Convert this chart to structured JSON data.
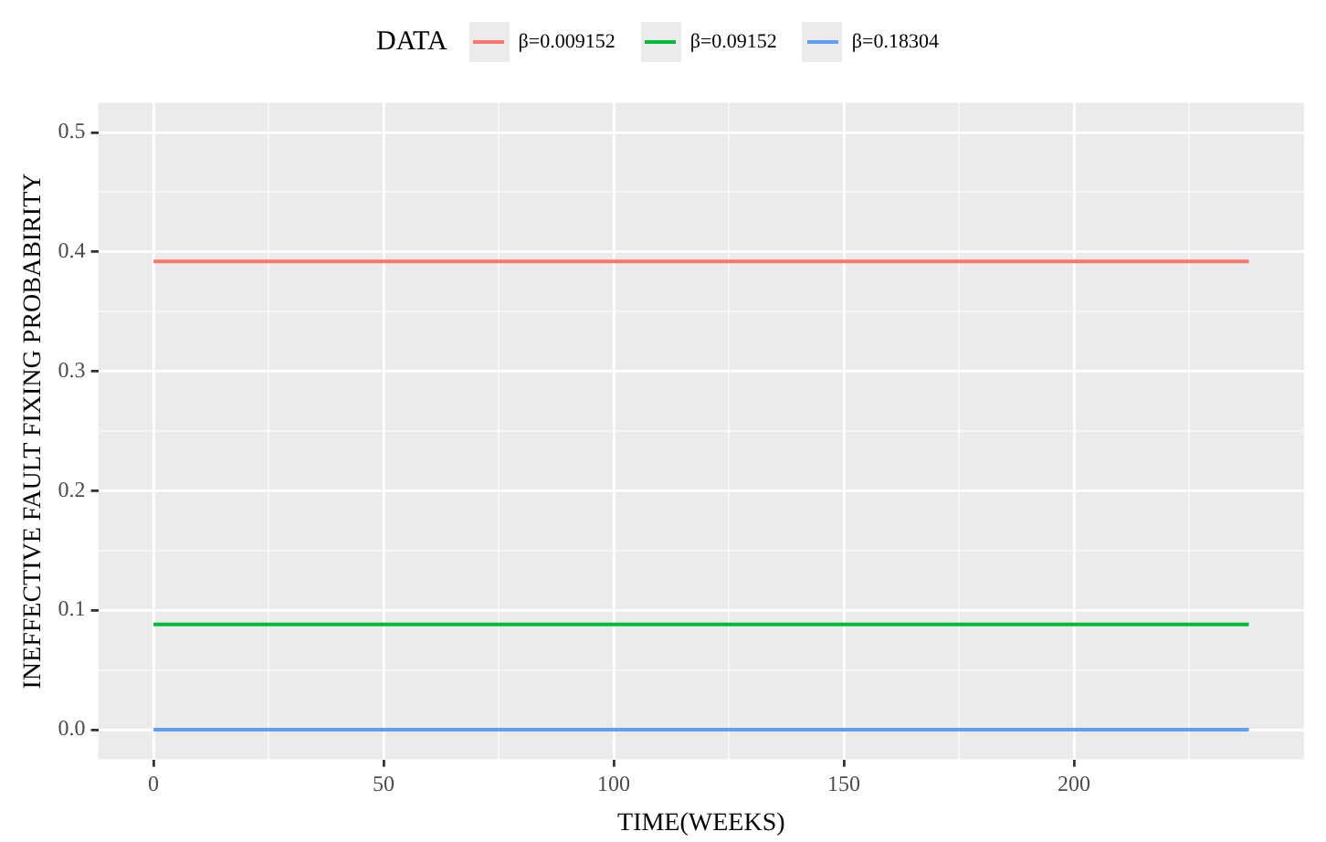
{
  "chart_data": {
    "type": "line",
    "xlabel": "TIME(WEEKS)",
    "ylabel": "INEFFECTIVE FAULT FIXING PROBABIRITY",
    "legend_title": "DATA",
    "legend": "top",
    "x": [
      0,
      238
    ],
    "series": [
      {
        "name": "β=0.009152",
        "color": "#f8766d",
        "values": [
          0.392,
          0.392
        ]
      },
      {
        "name": "β=0.09152",
        "color": "#00ba38",
        "values": [
          0.088,
          0.088
        ]
      },
      {
        "name": "β=0.18304",
        "color": "#619cff",
        "values": [
          0,
          0
        ]
      }
    ],
    "xlim": [
      -12,
      250
    ],
    "ylim": [
      -0.025,
      0.525
    ],
    "xticks": [
      0,
      {
        "value": 25,
        "label": null
      },
      50,
      {
        "value": 75,
        "label": null
      },
      100,
      {
        "value": 125,
        "label": null
      },
      150,
      {
        "value": 175,
        "label": null
      },
      200,
      {
        "value": 225,
        "label": null
      }
    ],
    "yticks": [
      {
        "value": 0,
        "label": "0.0"
      },
      {
        "value": 0.05,
        "label": null
      },
      0.1,
      {
        "value": 0.15,
        "label": null
      },
      0.2,
      {
        "value": 0.25,
        "label": null
      },
      0.3,
      {
        "value": 0.35,
        "label": null
      },
      0.4,
      {
        "value": 0.45,
        "label": null
      },
      0.5
    ],
    "grid": true,
    "marker": "none",
    "line_style": "solid"
  }
}
